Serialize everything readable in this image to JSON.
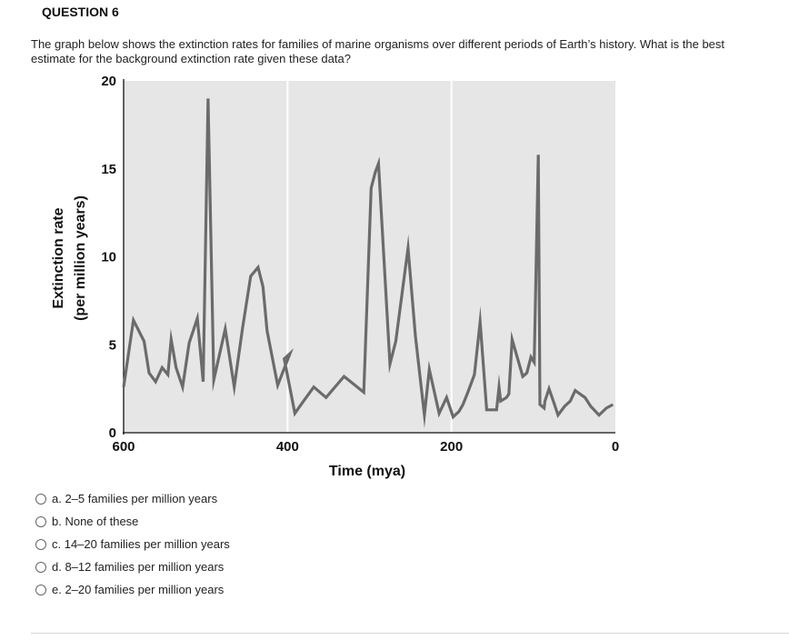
{
  "question": {
    "title": "QUESTION 6",
    "text": "The graph below shows the extinction rates for families of marine organisms over different periods of Earth’s history. What is the best estimate for the background extinction rate given these data?"
  },
  "options": [
    {
      "label": "a. 2–5 families per million years"
    },
    {
      "label": "b. None of these"
    },
    {
      "label": "c. 14–20 families per million years"
    },
    {
      "label": "d. 8–12 families per million years"
    },
    {
      "label": "e. 2–20 families per million years"
    }
  ],
  "chart_data": {
    "type": "line",
    "title": "",
    "xlabel": "Time (mya)",
    "ylabel_line1": "Extinction rate",
    "ylabel_line2": "(per million years)",
    "xlim": [
      600,
      0
    ],
    "ylim": [
      0,
      20
    ],
    "x_ticks": [
      600,
      400,
      200,
      0
    ],
    "x_tick_labels": [
      "600",
      "400",
      "200",
      "0"
    ],
    "y_ticks": [
      0,
      5,
      10,
      15,
      20
    ],
    "y_tick_labels": [
      "0",
      "5",
      "10",
      "15",
      "20"
    ],
    "grid": "vertical lines at 400 and 200",
    "colors": {
      "plot_bg": "#e6e6e6",
      "line": "#6b6b6b",
      "grid": "#ffffff"
    },
    "series": [
      {
        "x": [
          600,
          588,
          575,
          569,
          561,
          553,
          546,
          542,
          536,
          528,
          520,
          510,
          503,
          497,
          490,
          476,
          465,
          455,
          445,
          436,
          430,
          425,
          412,
          397,
          404,
          391,
          382,
          368,
          353,
          331,
          307,
          298,
          293,
          289,
          275,
          268,
          253,
          244,
          233,
          227,
          215,
          206,
          198,
          191,
          186,
          180,
          172,
          165,
          157,
          145,
          142,
          140,
          133,
          130,
          126,
          113,
          108,
          103,
          99,
          94,
          92,
          87,
          86,
          81,
          75,
          70,
          62,
          55,
          49,
          37,
          30,
          20,
          11,
          3
        ],
        "y": [
          2.6,
          6.4,
          5.2,
          3.4,
          2.9,
          3.7,
          3.3,
          5.3,
          3.7,
          2.6,
          5.1,
          6.5,
          2.9,
          19,
          3.0,
          5.9,
          2.6,
          5.9,
          8.9,
          9.4,
          8.3,
          5.8,
          2.7,
          4.5,
          4.2,
          1.1,
          1.7,
          2.6,
          2.0,
          3.2,
          2.3,
          13.9,
          14.8,
          15.3,
          3.9,
          5.2,
          10.5,
          5.5,
          1.0,
          3.6,
          1.1,
          2.0,
          0.9,
          1.2,
          1.6,
          2.3,
          3.3,
          6.3,
          1.3,
          1.3,
          2.6,
          1.8,
          2.0,
          2.2,
          5.3,
          3.2,
          3.4,
          4.3,
          4.0,
          15.8,
          1.6,
          1.4,
          1.8,
          2.5,
          1.7,
          1.0,
          1.5,
          1.8,
          2.4,
          2.0,
          1.5,
          1.0,
          1.4,
          1.6
        ]
      }
    ]
  }
}
